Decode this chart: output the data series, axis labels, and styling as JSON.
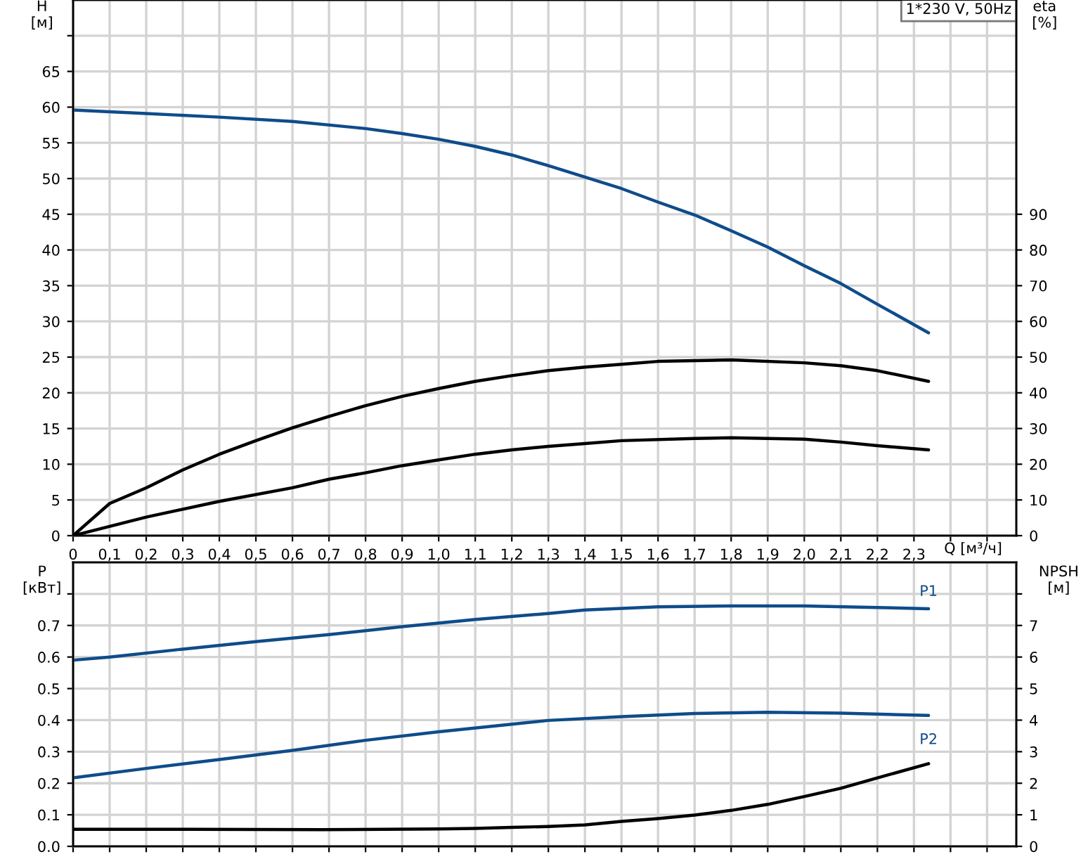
{
  "chart_data": [
    {
      "type": "line",
      "title": "1*230 V, 50Hz",
      "ylabel": "H\n[м]",
      "y2label": "eta\n[%]",
      "xlabel": "Q [м³/ч]",
      "grid": true,
      "legend": false,
      "marker": "none",
      "line_style": "solid",
      "xlim": [
        0,
        2.58
      ],
      "ylim": [
        0,
        75
      ],
      "y2lim": [
        0,
        150
      ],
      "xticks": [
        0,
        {
          "value": 0.1,
          "label": "0,1"
        },
        {
          "value": 0.2,
          "label": "0,2"
        },
        {
          "value": 0.3,
          "label": "0,3"
        },
        {
          "value": 0.4,
          "label": "0,4"
        },
        {
          "value": 0.5,
          "label": "0,5"
        },
        {
          "value": 0.6,
          "label": "0,6"
        },
        {
          "value": 0.7,
          "label": "0,7"
        },
        {
          "value": 0.8,
          "label": "0,8"
        },
        {
          "value": 0.9,
          "label": "0,9"
        },
        {
          "value": 1.0,
          "label": "1,0"
        },
        {
          "value": 1.1,
          "label": "1,1"
        },
        {
          "value": 1.2,
          "label": "1,2"
        },
        {
          "value": 1.3,
          "label": "1,3"
        },
        {
          "value": 1.4,
          "label": "1,4"
        },
        {
          "value": 1.5,
          "label": "1,5"
        },
        {
          "value": 1.6,
          "label": "1,6"
        },
        {
          "value": 1.7,
          "label": "1,7"
        },
        {
          "value": 1.8,
          "label": "1,8"
        },
        {
          "value": 1.9,
          "label": "1,9"
        },
        {
          "value": 2.0,
          "label": "2,0"
        },
        {
          "value": 2.1,
          "label": "2,1"
        },
        {
          "value": 2.2,
          "label": "2,2"
        },
        {
          "value": 2.3,
          "label": "2,3"
        },
        {
          "value": 2.4,
          "label": null
        },
        {
          "value": 2.5,
          "label": null
        }
      ],
      "yticks": [
        0,
        5,
        10,
        15,
        20,
        25,
        30,
        35,
        40,
        45,
        50,
        55,
        60,
        65,
        {
          "value": 70,
          "label": null
        }
      ],
      "y2ticks": [
        0,
        10,
        20,
        30,
        40,
        50,
        60,
        70,
        80,
        90
      ],
      "series": [
        {
          "color": "#0f4c8a",
          "x": [
            0,
            0.2,
            0.4,
            0.6,
            0.8,
            0.9,
            1.0,
            1.1,
            1.2,
            1.3,
            1.4,
            1.5,
            1.6,
            1.7,
            1.8,
            1.9,
            2.0,
            2.1,
            2.2,
            2.34
          ],
          "values": [
            59.6,
            59.1,
            58.6,
            58.0,
            57.0,
            56.3,
            55.5,
            54.5,
            53.3,
            51.8,
            50.2,
            48.6,
            46.7,
            44.9,
            42.7,
            40.4,
            37.8,
            35.3,
            32.4,
            28.4
          ]
        },
        {
          "color": "#000000",
          "axis": "y2",
          "x": [
            0,
            0.1,
            0.2,
            0.3,
            0.4,
            0.5,
            0.6,
            0.7,
            0.8,
            0.9,
            1.0,
            1.1,
            1.2,
            1.3,
            1.4,
            1.5,
            1.6,
            1.8,
            2.0,
            2.1,
            2.2,
            2.34
          ],
          "values": [
            0,
            9.0,
            13.4,
            18.4,
            22.8,
            26.6,
            30.2,
            33.4,
            36.4,
            39,
            41.2,
            43.2,
            44.8,
            46.2,
            47.2,
            48,
            48.8,
            49.2,
            48.4,
            47.6,
            46.2,
            43.2
          ]
        },
        {
          "color": "#000000",
          "axis": "y2",
          "x": [
            0,
            0.2,
            0.4,
            0.6,
            0.7,
            0.8,
            0.9,
            1.0,
            1.1,
            1.2,
            1.3,
            1.4,
            1.5,
            1.7,
            1.8,
            2.0,
            2.1,
            2.2,
            2.34
          ],
          "values": [
            0,
            5.2,
            9.6,
            13.4,
            15.8,
            17.6,
            19.6,
            21.2,
            22.8,
            24,
            25,
            25.8,
            26.6,
            27.2,
            27.4,
            27,
            26.2,
            25.2,
            24
          ]
        }
      ]
    },
    {
      "type": "line",
      "ylabel": "P\n[кВт]",
      "y2label": "NPSH\n[м]",
      "grid": true,
      "legend": false,
      "marker": "none",
      "line_style": "solid",
      "tick_labels": "y",
      "xlim": [
        0,
        2.58
      ],
      "ylim": [
        0,
        0.9
      ],
      "y2lim": [
        0,
        9
      ],
      "xticks": [
        0,
        0.1,
        0.2,
        0.3,
        0.4,
        0.5,
        0.6,
        0.7,
        0.8,
        0.9,
        1.0,
        1.1,
        1.2,
        1.3,
        1.4,
        1.5,
        1.6,
        1.7,
        1.8,
        1.9,
        2.0,
        2.1,
        2.2,
        2.3,
        2.4,
        2.5
      ],
      "yticks": [
        {
          "value": 0,
          "label": "0.0"
        },
        0.1,
        0.2,
        0.3,
        0.4,
        0.5,
        0.6,
        0.7,
        {
          "value": 0.8,
          "label": null
        }
      ],
      "y2ticks": [
        0,
        1,
        2,
        3,
        4,
        5,
        6,
        7,
        {
          "value": 8,
          "label": null
        }
      ],
      "annotations": [
        {
          "text": "P1",
          "x": 2.34,
          "y": 0.753
        },
        {
          "text": "P2",
          "x": 2.34,
          "y": 0.415
        }
      ],
      "series": [
        {
          "color": "#0f4c8a",
          "x": [
            0,
            0.1,
            0.3,
            0.5,
            0.7,
            0.9,
            1.1,
            1.3,
            1.4,
            1.6,
            1.8,
            2.0,
            2.2,
            2.34
          ],
          "values": [
            0.59,
            0.6,
            0.625,
            0.649,
            0.671,
            0.696,
            0.719,
            0.738,
            0.749,
            0.759,
            0.762,
            0.762,
            0.757,
            0.753
          ]
        },
        {
          "color": "#0f4c8a",
          "x": [
            0,
            0.2,
            0.4,
            0.6,
            0.8,
            1.0,
            1.2,
            1.3,
            1.5,
            1.7,
            1.9,
            2.1,
            2.34
          ],
          "values": [
            0.217,
            0.247,
            0.275,
            0.304,
            0.336,
            0.363,
            0.387,
            0.399,
            0.411,
            0.421,
            0.425,
            0.422,
            0.415
          ]
        },
        {
          "color": "#000000",
          "axis": "y2",
          "x": [
            0,
            0.32,
            0.68,
            1.0,
            1.1,
            1.2,
            1.3,
            1.4,
            1.5,
            1.6,
            1.7,
            1.8,
            1.9,
            2.0,
            2.1,
            2.2,
            2.34
          ],
          "values": [
            0.54,
            0.54,
            0.53,
            0.55,
            0.57,
            0.6,
            0.63,
            0.68,
            0.79,
            0.88,
            0.99,
            1.14,
            1.33,
            1.58,
            1.84,
            2.17,
            2.62
          ]
        }
      ]
    }
  ]
}
